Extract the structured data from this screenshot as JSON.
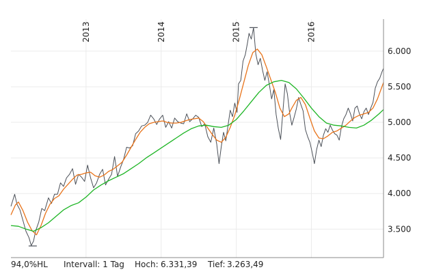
{
  "chart_data": {
    "type": "line",
    "x_start": 2012.0,
    "x_end": 2016.96,
    "ylim": [
      3100,
      6450
    ],
    "y_ticks": [
      3500,
      4000,
      4500,
      5000,
      5500,
      6000
    ],
    "y_tick_labels": [
      "3.500",
      "4.000",
      "4.500",
      "5.000",
      "5.500",
      "6.000"
    ],
    "x_ticks": [
      2013,
      2014,
      2015,
      2016
    ],
    "x_tick_labels": [
      "2013",
      "2014",
      "2015",
      "2016"
    ],
    "grid": true,
    "series": [
      {
        "role": "price",
        "color": "#4a4f57",
        "points": [
          [
            2012.0,
            3820
          ],
          [
            2012.05,
            3990
          ],
          [
            2012.08,
            3850
          ],
          [
            2012.12,
            3770
          ],
          [
            2012.16,
            3620
          ],
          [
            2012.2,
            3470
          ],
          [
            2012.24,
            3380
          ],
          [
            2012.27,
            3270
          ],
          [
            2012.3,
            3330
          ],
          [
            2012.33,
            3480
          ],
          [
            2012.37,
            3600
          ],
          [
            2012.41,
            3790
          ],
          [
            2012.45,
            3760
          ],
          [
            2012.5,
            3940
          ],
          [
            2012.54,
            3860
          ],
          [
            2012.58,
            3990
          ],
          [
            2012.62,
            3990
          ],
          [
            2012.66,
            4150
          ],
          [
            2012.7,
            4100
          ],
          [
            2012.74,
            4220
          ],
          [
            2012.78,
            4270
          ],
          [
            2012.82,
            4350
          ],
          [
            2012.86,
            4130
          ],
          [
            2012.9,
            4270
          ],
          [
            2012.94,
            4230
          ],
          [
            2012.98,
            4170
          ],
          [
            2013.02,
            4400
          ],
          [
            2013.06,
            4220
          ],
          [
            2013.1,
            4080
          ],
          [
            2013.14,
            4150
          ],
          [
            2013.18,
            4270
          ],
          [
            2013.22,
            4340
          ],
          [
            2013.26,
            4120
          ],
          [
            2013.3,
            4200
          ],
          [
            2013.34,
            4270
          ],
          [
            2013.38,
            4520
          ],
          [
            2013.42,
            4240
          ],
          [
            2013.46,
            4370
          ],
          [
            2013.5,
            4480
          ],
          [
            2013.54,
            4650
          ],
          [
            2013.58,
            4640
          ],
          [
            2013.62,
            4670
          ],
          [
            2013.66,
            4840
          ],
          [
            2013.7,
            4880
          ],
          [
            2013.74,
            4950
          ],
          [
            2013.78,
            4960
          ],
          [
            2013.82,
            5000
          ],
          [
            2013.86,
            5100
          ],
          [
            2013.9,
            5050
          ],
          [
            2013.94,
            4970
          ],
          [
            2013.98,
            5050
          ],
          [
            2014.02,
            5100
          ],
          [
            2014.06,
            4930
          ],
          [
            2014.1,
            5010
          ],
          [
            2014.14,
            4920
          ],
          [
            2014.18,
            5060
          ],
          [
            2014.22,
            5010
          ],
          [
            2014.26,
            4990
          ],
          [
            2014.3,
            4980
          ],
          [
            2014.34,
            5120
          ],
          [
            2014.38,
            5010
          ],
          [
            2014.42,
            5050
          ],
          [
            2014.46,
            5100
          ],
          [
            2014.5,
            5070
          ],
          [
            2014.54,
            4940
          ],
          [
            2014.58,
            4980
          ],
          [
            2014.62,
            4800
          ],
          [
            2014.66,
            4720
          ],
          [
            2014.7,
            4920
          ],
          [
            2014.74,
            4690
          ],
          [
            2014.77,
            4420
          ],
          [
            2014.8,
            4660
          ],
          [
            2014.83,
            4860
          ],
          [
            2014.86,
            4740
          ],
          [
            2014.89,
            4960
          ],
          [
            2014.92,
            5170
          ],
          [
            2014.95,
            5080
          ],
          [
            2014.98,
            5270
          ],
          [
            2015.01,
            5140
          ],
          [
            2015.03,
            5540
          ],
          [
            2015.06,
            5590
          ],
          [
            2015.09,
            5860
          ],
          [
            2015.12,
            5950
          ],
          [
            2015.15,
            6120
          ],
          [
            2015.17,
            6250
          ],
          [
            2015.2,
            6170
          ],
          [
            2015.23,
            6330
          ],
          [
            2015.26,
            5960
          ],
          [
            2015.29,
            5810
          ],
          [
            2015.32,
            5900
          ],
          [
            2015.35,
            5730
          ],
          [
            2015.38,
            5590
          ],
          [
            2015.41,
            5710
          ],
          [
            2015.44,
            5530
          ],
          [
            2015.47,
            5330
          ],
          [
            2015.5,
            5460
          ],
          [
            2015.53,
            5110
          ],
          [
            2015.56,
            4910
          ],
          [
            2015.59,
            4760
          ],
          [
            2015.62,
            5150
          ],
          [
            2015.65,
            5540
          ],
          [
            2015.68,
            5400
          ],
          [
            2015.71,
            5130
          ],
          [
            2015.74,
            4960
          ],
          [
            2015.77,
            5070
          ],
          [
            2015.8,
            5190
          ],
          [
            2015.83,
            5350
          ],
          [
            2015.86,
            5250
          ],
          [
            2015.89,
            5160
          ],
          [
            2015.92,
            4900
          ],
          [
            2015.95,
            4800
          ],
          [
            2015.98,
            4720
          ],
          [
            2016.01,
            4580
          ],
          [
            2016.04,
            4420
          ],
          [
            2016.07,
            4620
          ],
          [
            2016.1,
            4750
          ],
          [
            2016.13,
            4660
          ],
          [
            2016.16,
            4820
          ],
          [
            2016.19,
            4910
          ],
          [
            2016.22,
            4860
          ],
          [
            2016.25,
            4960
          ],
          [
            2016.28,
            4890
          ],
          [
            2016.31,
            4840
          ],
          [
            2016.34,
            4820
          ],
          [
            2016.37,
            4750
          ],
          [
            2016.4,
            4940
          ],
          [
            2016.43,
            5050
          ],
          [
            2016.46,
            5110
          ],
          [
            2016.49,
            5200
          ],
          [
            2016.52,
            5120
          ],
          [
            2016.55,
            5020
          ],
          [
            2016.58,
            5200
          ],
          [
            2016.61,
            5230
          ],
          [
            2016.64,
            5120
          ],
          [
            2016.67,
            5050
          ],
          [
            2016.7,
            5150
          ],
          [
            2016.73,
            5200
          ],
          [
            2016.76,
            5110
          ],
          [
            2016.79,
            5200
          ],
          [
            2016.82,
            5280
          ],
          [
            2016.85,
            5480
          ],
          [
            2016.88,
            5570
          ],
          [
            2016.91,
            5620
          ],
          [
            2016.94,
            5710
          ],
          [
            2016.96,
            5760
          ]
        ]
      },
      {
        "role": "moving-average-short",
        "color": "#e8731a",
        "points": [
          [
            2012.0,
            3700
          ],
          [
            2012.06,
            3840
          ],
          [
            2012.1,
            3880
          ],
          [
            2012.16,
            3760
          ],
          [
            2012.22,
            3600
          ],
          [
            2012.28,
            3480
          ],
          [
            2012.34,
            3420
          ],
          [
            2012.4,
            3550
          ],
          [
            2012.46,
            3720
          ],
          [
            2012.52,
            3850
          ],
          [
            2012.58,
            3930
          ],
          [
            2012.64,
            3970
          ],
          [
            2012.7,
            4060
          ],
          [
            2012.76,
            4130
          ],
          [
            2012.82,
            4200
          ],
          [
            2012.88,
            4260
          ],
          [
            2012.94,
            4270
          ],
          [
            2013.0,
            4290
          ],
          [
            2013.06,
            4300
          ],
          [
            2013.12,
            4250
          ],
          [
            2013.18,
            4230
          ],
          [
            2013.24,
            4260
          ],
          [
            2013.3,
            4310
          ],
          [
            2013.36,
            4340
          ],
          [
            2013.42,
            4390
          ],
          [
            2013.48,
            4440
          ],
          [
            2013.54,
            4540
          ],
          [
            2013.6,
            4650
          ],
          [
            2013.66,
            4760
          ],
          [
            2013.72,
            4860
          ],
          [
            2013.78,
            4930
          ],
          [
            2013.84,
            4980
          ],
          [
            2013.9,
            5000
          ],
          [
            2013.96,
            5010
          ],
          [
            2014.02,
            5020
          ],
          [
            2014.08,
            5000
          ],
          [
            2014.14,
            4990
          ],
          [
            2014.2,
            4990
          ],
          [
            2014.26,
            5000
          ],
          [
            2014.32,
            5020
          ],
          [
            2014.38,
            5040
          ],
          [
            2014.44,
            5050
          ],
          [
            2014.5,
            5060
          ],
          [
            2014.56,
            5010
          ],
          [
            2014.62,
            4920
          ],
          [
            2014.68,
            4830
          ],
          [
            2014.74,
            4750
          ],
          [
            2014.8,
            4720
          ],
          [
            2014.86,
            4790
          ],
          [
            2014.92,
            4930
          ],
          [
            2014.98,
            5100
          ],
          [
            2015.04,
            5320
          ],
          [
            2015.1,
            5560
          ],
          [
            2015.16,
            5800
          ],
          [
            2015.22,
            5980
          ],
          [
            2015.28,
            6030
          ],
          [
            2015.34,
            5950
          ],
          [
            2015.4,
            5780
          ],
          [
            2015.46,
            5600
          ],
          [
            2015.52,
            5420
          ],
          [
            2015.58,
            5200
          ],
          [
            2015.64,
            5080
          ],
          [
            2015.7,
            5120
          ],
          [
            2015.74,
            5200
          ],
          [
            2015.8,
            5310
          ],
          [
            2015.86,
            5350
          ],
          [
            2015.92,
            5250
          ],
          [
            2015.98,
            5060
          ],
          [
            2016.04,
            4880
          ],
          [
            2016.1,
            4780
          ],
          [
            2016.16,
            4770
          ],
          [
            2016.22,
            4810
          ],
          [
            2016.28,
            4860
          ],
          [
            2016.34,
            4880
          ],
          [
            2016.4,
            4920
          ],
          [
            2016.46,
            4960
          ],
          [
            2016.52,
            5020
          ],
          [
            2016.58,
            5070
          ],
          [
            2016.64,
            5100
          ],
          [
            2016.7,
            5120
          ],
          [
            2016.76,
            5140
          ],
          [
            2016.82,
            5200
          ],
          [
            2016.88,
            5330
          ],
          [
            2016.96,
            5560
          ]
        ]
      },
      {
        "role": "moving-average-long",
        "color": "#1db524",
        "points": [
          [
            2012.0,
            3550
          ],
          [
            2012.1,
            3540
          ],
          [
            2012.2,
            3500
          ],
          [
            2012.3,
            3470
          ],
          [
            2012.4,
            3520
          ],
          [
            2012.5,
            3590
          ],
          [
            2012.6,
            3680
          ],
          [
            2012.7,
            3770
          ],
          [
            2012.8,
            3830
          ],
          [
            2012.9,
            3870
          ],
          [
            2013.0,
            3950
          ],
          [
            2013.1,
            4050
          ],
          [
            2013.2,
            4120
          ],
          [
            2013.3,
            4180
          ],
          [
            2013.4,
            4230
          ],
          [
            2013.5,
            4280
          ],
          [
            2013.6,
            4350
          ],
          [
            2013.7,
            4420
          ],
          [
            2013.8,
            4500
          ],
          [
            2013.9,
            4570
          ],
          [
            2014.0,
            4640
          ],
          [
            2014.1,
            4710
          ],
          [
            2014.2,
            4780
          ],
          [
            2014.3,
            4850
          ],
          [
            2014.4,
            4910
          ],
          [
            2014.5,
            4950
          ],
          [
            2014.6,
            4960
          ],
          [
            2014.7,
            4940
          ],
          [
            2014.8,
            4930
          ],
          [
            2014.9,
            4960
          ],
          [
            2015.0,
            5040
          ],
          [
            2015.1,
            5160
          ],
          [
            2015.2,
            5290
          ],
          [
            2015.3,
            5420
          ],
          [
            2015.4,
            5520
          ],
          [
            2015.5,
            5570
          ],
          [
            2015.6,
            5590
          ],
          [
            2015.7,
            5560
          ],
          [
            2015.8,
            5470
          ],
          [
            2015.9,
            5340
          ],
          [
            2016.0,
            5200
          ],
          [
            2016.1,
            5080
          ],
          [
            2016.2,
            4990
          ],
          [
            2016.3,
            4960
          ],
          [
            2016.4,
            4950
          ],
          [
            2016.5,
            4930
          ],
          [
            2016.6,
            4920
          ],
          [
            2016.7,
            4960
          ],
          [
            2016.8,
            5030
          ],
          [
            2016.9,
            5120
          ],
          [
            2016.96,
            5180
          ]
        ]
      }
    ],
    "annotations": {
      "low_marker": {
        "x": 2012.29,
        "y": 3263.49
      },
      "high_marker": {
        "x": 2015.23,
        "y": 6331.39
      }
    }
  },
  "footer": {
    "span_label": "94,0%HL",
    "interval_label": "Intervall: 1 Tag",
    "high_label": "Hoch:",
    "high_value": "6.331,39",
    "low_label": "Tief:",
    "low_value": "3.263,49"
  }
}
